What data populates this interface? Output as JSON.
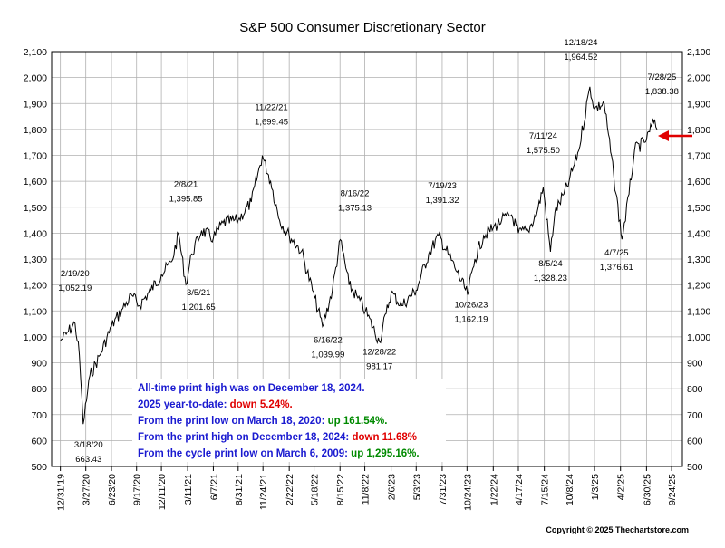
{
  "chart_data": {
    "type": "line",
    "title": "S&P 500 Consumer Discretionary Sector",
    "xlabel": "",
    "ylabel": "",
    "ylim": [
      500,
      2100
    ],
    "yticks": [
      500,
      600,
      700,
      800,
      900,
      1000,
      1100,
      1200,
      1300,
      1400,
      1500,
      1600,
      1700,
      1800,
      1900,
      2000,
      2100
    ],
    "ytick_labels": [
      "500",
      "600",
      "700",
      "800",
      "900",
      "1,000",
      "1,100",
      "1,200",
      "1,300",
      "1,400",
      "1,500",
      "1,600",
      "1,700",
      "1,800",
      "1,900",
      "2,000",
      "2,100"
    ],
    "xlim": [
      "2019-12-01",
      "2025-10-31"
    ],
    "xticks": [
      "2019-12-31",
      "2020-03-27",
      "2020-06-23",
      "2020-09-17",
      "2020-12-11",
      "2021-03-11",
      "2021-06-07",
      "2021-08-31",
      "2021-11-24",
      "2022-02-22",
      "2022-05-18",
      "2022-08-15",
      "2022-11-08",
      "2023-02-06",
      "2023-05-03",
      "2023-07-31",
      "2023-10-24",
      "2024-01-22",
      "2024-04-17",
      "2024-07-15",
      "2024-10-08",
      "2025-01-03",
      "2025-04-02",
      "2025-06-30",
      "2025-09-24"
    ],
    "xtick_labels": [
      "12/31/19",
      "3/27/20",
      "6/23/20",
      "9/17/20",
      "12/11/20",
      "3/11/21",
      "6/7/21",
      "8/31/21",
      "11/24/21",
      "2/22/22",
      "5/18/22",
      "8/15/22",
      "11/8/22",
      "2/6/23",
      "5/3/23",
      "7/31/23",
      "10/24/23",
      "1/22/24",
      "4/17/24",
      "7/15/24",
      "10/8/24",
      "1/3/25",
      "4/2/25",
      "6/30/25",
      "9/24/25"
    ],
    "grid": true,
    "series": [
      {
        "color": "#000000",
        "x": [
          "2019-12-31",
          "2020-01-20",
          "2020-02-19",
          "2020-03-05",
          "2020-03-18",
          "2020-04-10",
          "2020-05-15",
          "2020-06-23",
          "2020-08-01",
          "2020-09-01",
          "2020-09-25",
          "2020-11-05",
          "2020-12-11",
          "2021-01-15",
          "2021-02-08",
          "2021-03-05",
          "2021-03-25",
          "2021-04-28",
          "2021-06-07",
          "2021-07-10",
          "2021-08-31",
          "2021-10-15",
          "2021-11-22",
          "2021-12-20",
          "2022-01-20",
          "2022-02-22",
          "2022-04-05",
          "2022-05-20",
          "2022-06-16",
          "2022-07-20",
          "2022-08-16",
          "2022-09-15",
          "2022-10-15",
          "2022-11-10",
          "2022-12-28",
          "2023-01-20",
          "2023-02-06",
          "2023-03-15",
          "2023-05-03",
          "2023-06-15",
          "2023-07-19",
          "2023-08-20",
          "2023-09-20",
          "2023-10-26",
          "2023-11-20",
          "2023-12-20",
          "2024-01-22",
          "2024-02-20",
          "2024-03-25",
          "2024-04-17",
          "2024-05-20",
          "2024-06-20",
          "2024-07-11",
          "2024-08-05",
          "2024-08-20",
          "2024-09-20",
          "2024-10-08",
          "2024-11-10",
          "2024-12-18",
          "2025-01-03",
          "2025-02-05",
          "2025-03-10",
          "2025-04-07",
          "2025-05-01",
          "2025-05-20",
          "2025-06-30",
          "2025-07-28",
          "2025-08-05"
        ],
        "y": [
          985,
          1010,
          1052.19,
          930,
          663.43,
          850,
          930,
          1040,
          1110,
          1160,
          1120,
          1180,
          1240,
          1290,
          1395.85,
          1201.65,
          1320,
          1410,
          1380,
          1440,
          1450,
          1520,
          1699.45,
          1600,
          1450,
          1390,
          1330,
          1150,
          1039.99,
          1180,
          1375.13,
          1200,
          1150,
          1100,
          981.17,
          1090,
          1170,
          1120,
          1180,
          1320,
          1391.32,
          1320,
          1250,
          1162.19,
          1300,
          1390,
          1420,
          1450,
          1470,
          1400,
          1410,
          1480,
          1575.5,
          1328.23,
          1480,
          1550,
          1600,
          1720,
          1964.52,
          1880,
          1900,
          1620,
          1376.61,
          1550,
          1720,
          1760,
          1838.38,
          1800
        ]
      }
    ],
    "annotations": [
      {
        "date": "2/19/20",
        "value": "1,052.19"
      },
      {
        "date": "3/18/20",
        "value": "663.43"
      },
      {
        "date": "2/8/21",
        "value": "1,395.85"
      },
      {
        "date": "3/5/21",
        "value": "1,201.65"
      },
      {
        "date": "11/22/21",
        "value": "1,699.45"
      },
      {
        "date": "6/16/22",
        "value": "1,039.99"
      },
      {
        "date": "8/16/22",
        "value": "1,375.13"
      },
      {
        "date": "12/28/22",
        "value": "981.17"
      },
      {
        "date": "7/19/23",
        "value": "1,391.32"
      },
      {
        "date": "10/26/23",
        "value": "1,162.19"
      },
      {
        "date": "7/11/24",
        "value": "1,575.50"
      },
      {
        "date": "8/5/24",
        "value": "1,328.23"
      },
      {
        "date": "12/18/24",
        "value": "1,964.52"
      },
      {
        "date": "4/7/25",
        "value": "1,376.61"
      },
      {
        "date": "7/28/25",
        "value": "1,838.38"
      }
    ],
    "notes": [
      {
        "parts": [
          {
            "text": "All-time print high was on December 18, 2024.",
            "color": "#1a1ad0"
          }
        ]
      },
      {
        "parts": [
          {
            "text": "2025 year-to-date:  ",
            "color": "#1a1ad0"
          },
          {
            "text": "down 5.24%.",
            "color": "#e00000"
          }
        ]
      },
      {
        "parts": [
          {
            "text": "From the print low on March 18, 2020:  ",
            "color": "#1a1ad0"
          },
          {
            "text": "up 161.54%.",
            "color": "#008a00"
          }
        ]
      },
      {
        "parts": [
          {
            "text": "From the print high on December 18, 2024:  ",
            "color": "#1a1ad0"
          },
          {
            "text": "down 11.68%",
            "color": "#e00000"
          }
        ]
      },
      {
        "parts": [
          {
            "text": "From the cycle print low on March 6, 2009:  ",
            "color": "#1a1ad0"
          },
          {
            "text": "up 1,295.16%.",
            "color": "#008a00"
          }
        ]
      }
    ],
    "copyright": "Copyright © 2025 Thechartstore.com",
    "arrow_color": "#e00000"
  }
}
